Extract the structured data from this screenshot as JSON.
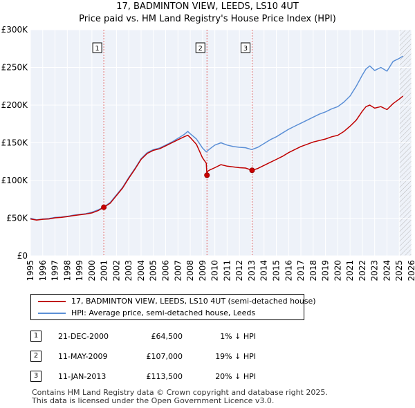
{
  "title": "17, BADMINTON VIEW, LEEDS, LS10 4UT",
  "subtitle": "Price paid vs. HM Land Registry's House Price Index (HPI)",
  "colors": {
    "property": "#c00000",
    "hpi": "#5b8fd6",
    "marker_fill": "#cc0000"
  },
  "chart_data": {
    "type": "line",
    "title": "17, BADMINTON VIEW, LEEDS, LS10 4UT",
    "subtitle": "Price paid vs. HM Land Registry's House Price Index (HPI)",
    "xlim": [
      1995,
      2026
    ],
    "ylim": [
      0,
      300000
    ],
    "x_ticks": [
      1995,
      1996,
      1997,
      1998,
      1999,
      2000,
      2001,
      2002,
      2003,
      2004,
      2005,
      2006,
      2007,
      2008,
      2009,
      2010,
      2011,
      2012,
      2013,
      2014,
      2015,
      2016,
      2017,
      2018,
      2019,
      2020,
      2021,
      2022,
      2023,
      2024,
      2025,
      2026
    ],
    "y_ticks": [
      {
        "value": 0,
        "label": "£0"
      },
      {
        "value": 50000,
        "label": "£50K"
      },
      {
        "value": 100000,
        "label": "£100K"
      },
      {
        "value": 150000,
        "label": "£150K"
      },
      {
        "value": 200000,
        "label": "£200K"
      },
      {
        "value": 250000,
        "label": "£250K"
      },
      {
        "value": 300000,
        "label": "£300K"
      }
    ],
    "grid": true,
    "forecast_from": 2025.0,
    "series": [
      {
        "name": "17, BADMINTON VIEW, LEEDS, LS10 4UT (semi-detached house)",
        "color": "#c00000",
        "x": [
          1995.0,
          1995.5,
          1996.0,
          1996.5,
          1997.0,
          1997.5,
          1998.0,
          1998.5,
          1999.0,
          1999.5,
          2000.0,
          2000.5,
          2000.97,
          2001.5,
          2002.0,
          2002.5,
          2003.0,
          2003.5,
          2004.0,
          2004.5,
          2005.0,
          2005.5,
          2006.0,
          2006.5,
          2007.0,
          2007.5,
          2007.8,
          2008.0,
          2008.5,
          2009.0,
          2009.3,
          2009.36,
          2009.4,
          2009.6,
          2010.0,
          2010.5,
          2011.0,
          2011.5,
          2012.0,
          2012.5,
          2013.03,
          2013.5,
          2014.0,
          2014.5,
          2015.0,
          2015.5,
          2016.0,
          2016.5,
          2017.0,
          2017.5,
          2018.0,
          2018.5,
          2019.0,
          2019.5,
          2020.0,
          2020.5,
          2021.0,
          2021.5,
          2022.0,
          2022.3,
          2022.6,
          2023.0,
          2023.5,
          2024.0,
          2024.5,
          2025.0,
          2025.3
        ],
        "y": [
          49000,
          47500,
          48500,
          49000,
          50500,
          51000,
          52000,
          53500,
          54500,
          55500,
          57000,
          60000,
          64500,
          70000,
          80000,
          90000,
          103000,
          115000,
          128000,
          136000,
          140000,
          142000,
          146000,
          150000,
          154000,
          158000,
          160000,
          157000,
          148000,
          130000,
          123000,
          107000,
          112000,
          114000,
          117000,
          121000,
          119000,
          118000,
          117000,
          116500,
          113500,
          116000,
          120000,
          124000,
          128000,
          132000,
          137000,
          141000,
          145000,
          148000,
          151000,
          153000,
          155000,
          158000,
          160000,
          165000,
          172000,
          180000,
          192000,
          198000,
          200000,
          196000,
          198000,
          194000,
          202000,
          208000,
          212000
        ]
      },
      {
        "name": "HPI: Average price, semi-detached house, Leeds",
        "color": "#5b8fd6",
        "x": [
          1995.0,
          1995.5,
          1996.0,
          1996.5,
          1997.0,
          1997.5,
          1998.0,
          1998.5,
          1999.0,
          1999.5,
          2000.0,
          2000.5,
          2001.0,
          2001.5,
          2002.0,
          2002.5,
          2003.0,
          2003.5,
          2004.0,
          2004.5,
          2005.0,
          2005.5,
          2006.0,
          2006.5,
          2007.0,
          2007.5,
          2007.8,
          2008.0,
          2008.5,
          2009.0,
          2009.3,
          2009.6,
          2010.0,
          2010.5,
          2011.0,
          2011.5,
          2012.0,
          2012.5,
          2013.0,
          2013.5,
          2014.0,
          2014.5,
          2015.0,
          2015.5,
          2016.0,
          2016.5,
          2017.0,
          2017.5,
          2018.0,
          2018.5,
          2019.0,
          2019.5,
          2020.0,
          2020.5,
          2021.0,
          2021.5,
          2022.0,
          2022.3,
          2022.6,
          2023.0,
          2023.5,
          2024.0,
          2024.5,
          2025.0,
          2025.3
        ],
        "y": [
          50000,
          48000,
          49000,
          49500,
          51000,
          51500,
          52500,
          54000,
          55000,
          56000,
          58000,
          61000,
          65000,
          71000,
          81000,
          91000,
          104000,
          116000,
          129000,
          137000,
          141000,
          143000,
          147000,
          151000,
          156000,
          161000,
          165000,
          162000,
          155000,
          143000,
          138000,
          142000,
          147000,
          150000,
          147000,
          145000,
          144000,
          143500,
          141000,
          144000,
          149000,
          154000,
          158000,
          163000,
          168000,
          172000,
          176000,
          180000,
          184000,
          188000,
          191000,
          195000,
          198000,
          204000,
          212000,
          225000,
          240000,
          248000,
          252000,
          246000,
          250000,
          245000,
          258000,
          262000,
          265000
        ]
      }
    ],
    "transactions": [
      {
        "num": "1",
        "x": 2000.97,
        "y": 64500,
        "date": "21-DEC-2000",
        "price": "£64,500",
        "hpi": "1% ↓ HPI"
      },
      {
        "num": "2",
        "x": 2009.36,
        "y": 107000,
        "date": "11-MAY-2009",
        "price": "£107,000",
        "hpi": "19% ↓ HPI"
      },
      {
        "num": "3",
        "x": 2013.03,
        "y": 113500,
        "date": "11-JAN-2013",
        "price": "£113,500",
        "hpi": "20% ↓ HPI"
      }
    ]
  },
  "legend": {
    "property_label": "17, BADMINTON VIEW, LEEDS, LS10 4UT (semi-detached house)",
    "hpi_label": "HPI: Average price, semi-detached house, Leeds"
  },
  "sales": [
    {
      "num": "1",
      "date": "21-DEC-2000",
      "price": "£64,500",
      "hpi": "1% ↓ HPI"
    },
    {
      "num": "2",
      "date": "11-MAY-2009",
      "price": "£107,000",
      "hpi": "19% ↓ HPI"
    },
    {
      "num": "3",
      "date": "11-JAN-2013",
      "price": "£113,500",
      "hpi": "20% ↓ HPI"
    }
  ],
  "footer": {
    "line1": "Contains HM Land Registry data © Crown copyright and database right 2025.",
    "line2": "This data is licensed under the Open Government Licence v3.0."
  }
}
